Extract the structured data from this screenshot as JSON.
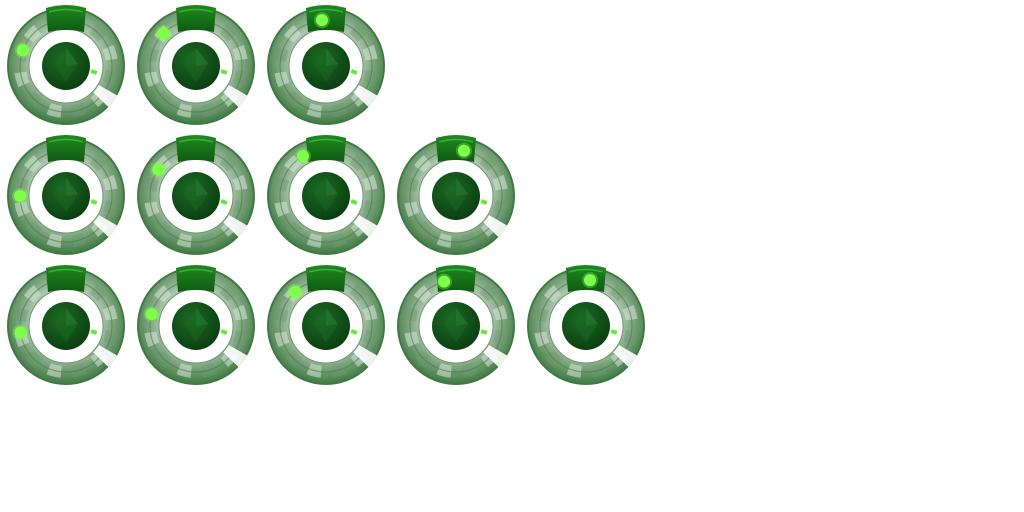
{
  "sprite_sheet": {
    "background": "#ffffff",
    "colors": {
      "ring_dark": "#3f7a43",
      "ring_mid": "#6e9a70",
      "ring_light": "#a9c4aa",
      "segment_highlight": "#d8e6d8",
      "cap_green": "#1e8a1e",
      "cap_dark": "#0f5a12",
      "gem_dark": "#0a3d10",
      "gem_mid": "#1c6a24",
      "inner_white": "#ffffff",
      "indicator_lime": "#7dff4a",
      "tick_lime": "#66e83a"
    },
    "rows": [
      {
        "frames": [
          {
            "icon": "dial-knob-icon",
            "indicator_angle_deg": 200
          },
          {
            "icon": "dial-knob-icon",
            "indicator_angle_deg": 225
          },
          {
            "icon": "dial-knob-icon",
            "indicator_angle_deg": 265
          }
        ]
      },
      {
        "frames": [
          {
            "icon": "dial-knob-icon",
            "indicator_angle_deg": 180
          },
          {
            "icon": "dial-knob-icon",
            "indicator_angle_deg": 215
          },
          {
            "icon": "dial-knob-icon",
            "indicator_angle_deg": 240
          },
          {
            "icon": "dial-knob-icon",
            "indicator_angle_deg": 280
          }
        ]
      },
      {
        "frames": [
          {
            "icon": "dial-knob-icon",
            "indicator_angle_deg": 172
          },
          {
            "icon": "dial-knob-icon",
            "indicator_angle_deg": 195
          },
          {
            "icon": "dial-knob-icon",
            "indicator_angle_deg": 228
          },
          {
            "icon": "dial-knob-icon",
            "indicator_angle_deg": 255
          },
          {
            "icon": "dial-knob-icon",
            "indicator_angle_deg": 275
          }
        ]
      }
    ]
  }
}
